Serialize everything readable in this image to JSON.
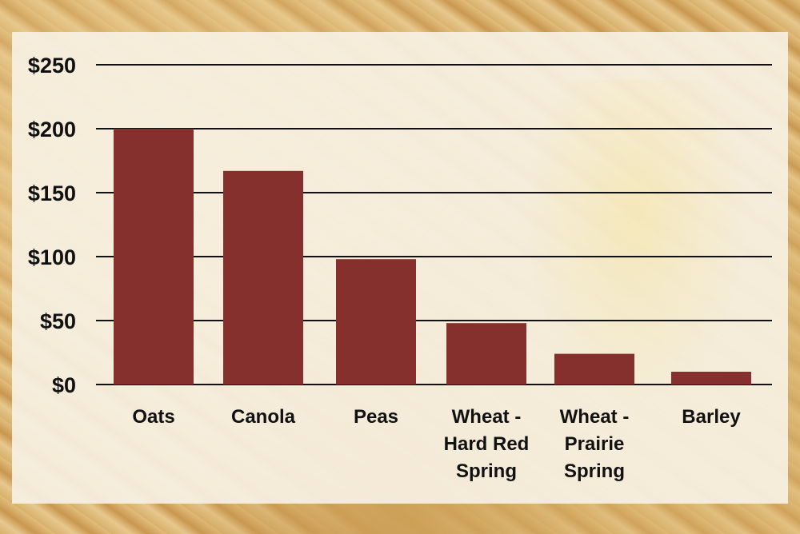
{
  "chart_data": {
    "type": "bar",
    "title": "",
    "xlabel": "",
    "ylabel": "",
    "categories": [
      [
        "Oats"
      ],
      [
        "Canola"
      ],
      [
        "Peas"
      ],
      [
        "Wheat -",
        "Hard Red",
        "Spring"
      ],
      [
        "Wheat -",
        "Prairie",
        "Spring"
      ],
      [
        "Barley"
      ]
    ],
    "values": [
      200,
      167,
      98,
      48,
      24,
      10
    ],
    "ylim": [
      0,
      250
    ],
    "yticks": [
      0,
      50,
      100,
      150,
      200,
      250
    ],
    "ytick_labels": [
      "$0",
      "$50",
      "$100",
      "$150",
      "$200",
      "$250"
    ],
    "grid": true,
    "bar_color": "#86302e",
    "grid_color": "#111111"
  }
}
